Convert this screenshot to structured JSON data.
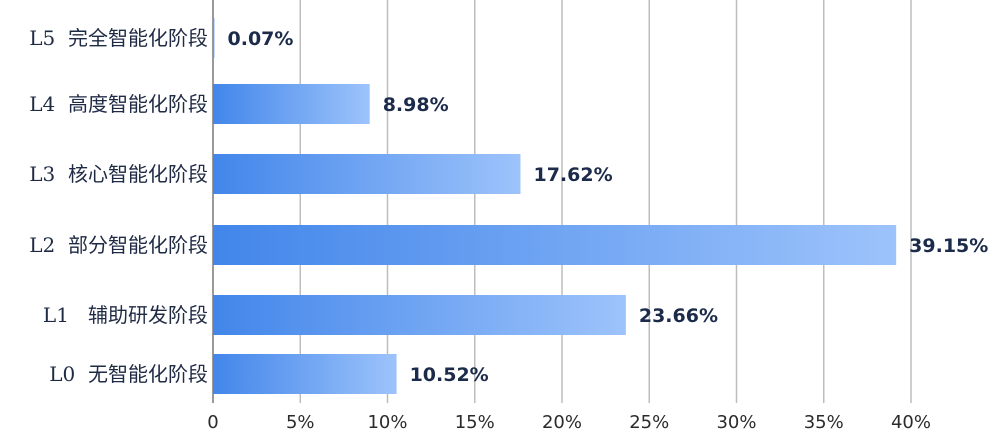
{
  "chart_data": {
    "type": "bar",
    "orientation": "horizontal",
    "title": "",
    "xlabel": "",
    "ylabel": "",
    "xlim": [
      0,
      40
    ],
    "x_ticks": [
      "0",
      "5%",
      "10%",
      "15%",
      "20%",
      "25%",
      "30%",
      "35%",
      "40%"
    ],
    "grid": "vertical",
    "categories": [
      "L5  完全智能化阶段",
      "L4  高度智能化阶段",
      "L3  核心智能化阶段",
      "L2  部分智能化阶段",
      "L1   辅助研发阶段",
      "L0  无智能化阶段"
    ],
    "values": [
      0.07,
      8.98,
      17.62,
      39.15,
      23.66,
      10.52
    ],
    "value_labels": [
      "0.07%",
      "8.98%",
      "17.62%",
      "39.15%",
      "23.66%",
      "10.52%"
    ],
    "colors": {
      "bar_start": "#4286ea",
      "bar_end": "#9dc3fb",
      "grid": "#bdbdbd"
    }
  }
}
